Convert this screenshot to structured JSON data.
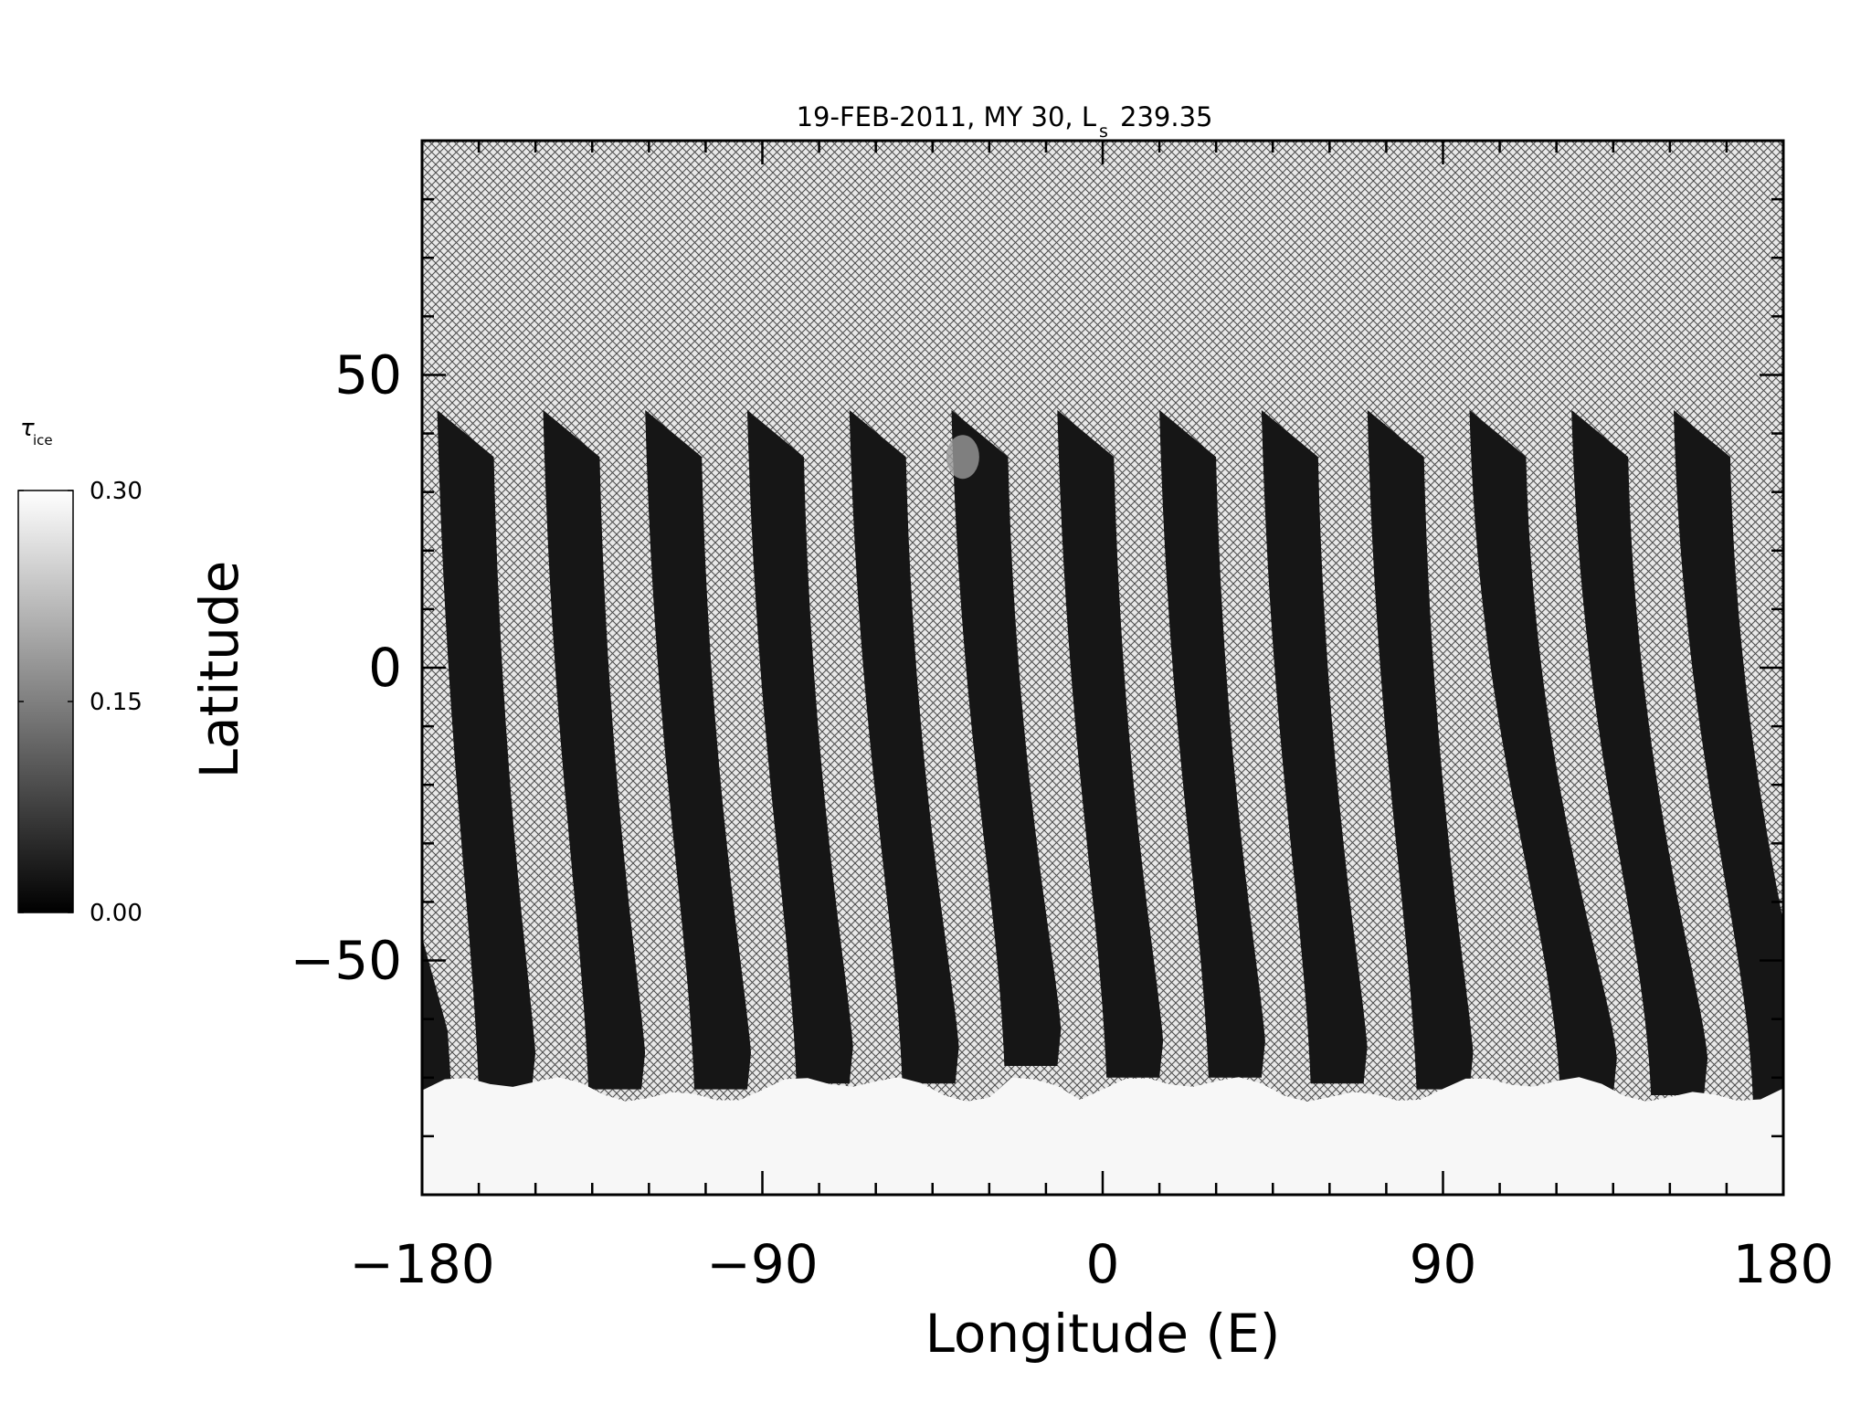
{
  "chart_data": {
    "type": "heatmap",
    "title": "19-FEB-2011, MY 30,  L",
    "title_sub": "s",
    "title_value": "239.35",
    "xlabel": "Longitude (E)",
    "ylabel": "Latitude",
    "xlim": [
      -180,
      180
    ],
    "ylim": [
      -90,
      90
    ],
    "xticks": [
      "-180",
      "-90",
      "0",
      "90",
      "180"
    ],
    "xtick_values": [
      -180,
      -90,
      0,
      90,
      180
    ],
    "yticks": [
      "-50",
      "0",
      "50"
    ],
    "ytick_values": [
      -50,
      0,
      50
    ],
    "x_minor_step": 15,
    "y_minor_step": 10,
    "colorbar": {
      "label": "τ",
      "label_sub": "ice",
      "ticks": [
        "0.30",
        "0.15",
        "0.00"
      ],
      "tick_values": [
        0.3,
        0.15,
        0.0
      ],
      "range": [
        0.0,
        0.3
      ],
      "colormap": "grayscale (black = 0.00, white = 0.30)"
    },
    "no_data_fill": "cross-hatch",
    "swaths": [
      {
        "lon_top": -176,
        "lon_bottom": -165,
        "lat_top": 44,
        "lat_bottom": -72
      },
      {
        "lon_top": -148,
        "lon_bottom": -136,
        "lat_top": 44,
        "lat_bottom": -72
      },
      {
        "lon_top": -121,
        "lon_bottom": -108,
        "lat_top": 44,
        "lat_bottom": -72
      },
      {
        "lon_top": -94,
        "lon_bottom": -81,
        "lat_top": 44,
        "lat_bottom": -71
      },
      {
        "lon_top": -67,
        "lon_bottom": -53,
        "lat_top": 44,
        "lat_bottom": -71
      },
      {
        "lon_top": -40,
        "lon_bottom": -26,
        "lat_top": 44,
        "lat_bottom": -68
      },
      {
        "lon_top": -12,
        "lon_bottom": 1,
        "lat_top": 44,
        "lat_bottom": -70
      },
      {
        "lon_top": 15,
        "lon_bottom": 28,
        "lat_top": 44,
        "lat_bottom": -70
      },
      {
        "lon_top": 42,
        "lon_bottom": 55,
        "lat_top": 44,
        "lat_bottom": -71
      },
      {
        "lon_top": 70,
        "lon_bottom": 83,
        "lat_top": 44,
        "lat_bottom": -72
      },
      {
        "lon_top": 97,
        "lon_bottom": 121,
        "lat_top": 44,
        "lat_bottom": -73
      },
      {
        "lon_top": 124,
        "lon_bottom": 145,
        "lat_top": 44,
        "lat_bottom": -73
      },
      {
        "lon_top": 151,
        "lon_bottom": 172,
        "lat_top": 44,
        "lat_bottom": -74
      }
    ],
    "south_polar_ice": {
      "tau": 0.3,
      "lat_edge": -72
    }
  }
}
